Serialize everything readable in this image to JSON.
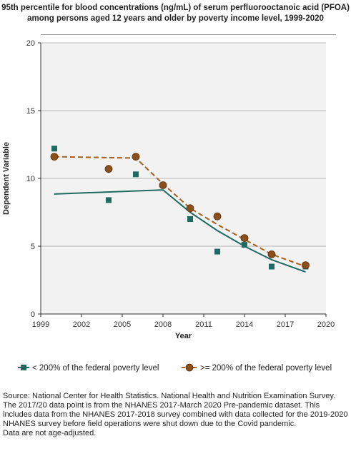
{
  "title": "95th percentile for blood concentrations (ng/mL) of serum perfluorooctanoic acid (PFOA) among persons aged 12 years and older by poverty income level, 1999-2020",
  "source_notes": [
    "Source: National Center for Health Statistics. National Health and Nutrition Examination Survey.",
    "The 2017/20 data point is from the NHANES 2017-March 2020 Pre-pandemic dataset. This includes data from the NHANES 2017-2018 survey combined with data collected for the 2019-2020 NHANES survey before field operations were shut down due to the Covid pandemic.",
    "Data are not age-adjusted."
  ],
  "colors": {
    "series_below": "#1f6b62",
    "series_above": "#8b4f1c",
    "series_above_line": "#a8601e",
    "plot_background": "#f2f2f2",
    "grid": "#b8b8b8",
    "axis": "#333333"
  },
  "chart_data": {
    "type": "scatter",
    "xlabel": "Year",
    "ylabel": "Dependent Variable",
    "xlim": [
      1999,
      2020
    ],
    "ylim": [
      0,
      20
    ],
    "x_ticks": [
      1999,
      2002,
      2005,
      2008,
      2011,
      2014,
      2017,
      2020
    ],
    "y_ticks": [
      0,
      5,
      10,
      15,
      20
    ],
    "grid": "horizontal",
    "legend_position": "bottom",
    "series": [
      {
        "name": "< 200% of the federal poverty level",
        "marker": "square",
        "color": "#1f6b62",
        "points": [
          {
            "x": 2000,
            "y": 12.2
          },
          {
            "x": 2004,
            "y": 8.4
          },
          {
            "x": 2006,
            "y": 10.3
          },
          {
            "x": 2008,
            "y": 9.5
          },
          {
            "x": 2010,
            "y": 7.0
          },
          {
            "x": 2012,
            "y": 4.6
          },
          {
            "x": 2014,
            "y": 5.1
          },
          {
            "x": 2016,
            "y": 3.5
          },
          {
            "x": 2018.5,
            "y": 3.5
          }
        ],
        "trend": {
          "style": "solid",
          "points": [
            {
              "x": 2000,
              "y": 8.85
            },
            {
              "x": 2008,
              "y": 9.15
            },
            {
              "x": 2010,
              "y": 7.5
            },
            {
              "x": 2012,
              "y": 6.15
            },
            {
              "x": 2014,
              "y": 5.0
            },
            {
              "x": 2016,
              "y": 4.0
            },
            {
              "x": 2018.5,
              "y": 3.1
            }
          ]
        }
      },
      {
        "name": ">= 200% of the federal poverty level",
        "marker": "circle",
        "color": "#8b4f1c",
        "points": [
          {
            "x": 2000,
            "y": 11.6
          },
          {
            "x": 2004,
            "y": 10.7
          },
          {
            "x": 2006,
            "y": 11.6
          },
          {
            "x": 2008,
            "y": 9.5
          },
          {
            "x": 2010,
            "y": 7.8
          },
          {
            "x": 2012,
            "y": 7.2
          },
          {
            "x": 2014,
            "y": 5.6
          },
          {
            "x": 2016,
            "y": 4.4
          },
          {
            "x": 2018.5,
            "y": 3.6
          }
        ],
        "trend": {
          "style": "dashed",
          "points": [
            {
              "x": 2000,
              "y": 11.6
            },
            {
              "x": 2006,
              "y": 11.5
            },
            {
              "x": 2008,
              "y": 9.6
            },
            {
              "x": 2010,
              "y": 7.8
            },
            {
              "x": 2012,
              "y": 6.6
            },
            {
              "x": 2014,
              "y": 5.5
            },
            {
              "x": 2016,
              "y": 4.4
            },
            {
              "x": 2018.5,
              "y": 3.5
            }
          ]
        }
      }
    ]
  }
}
